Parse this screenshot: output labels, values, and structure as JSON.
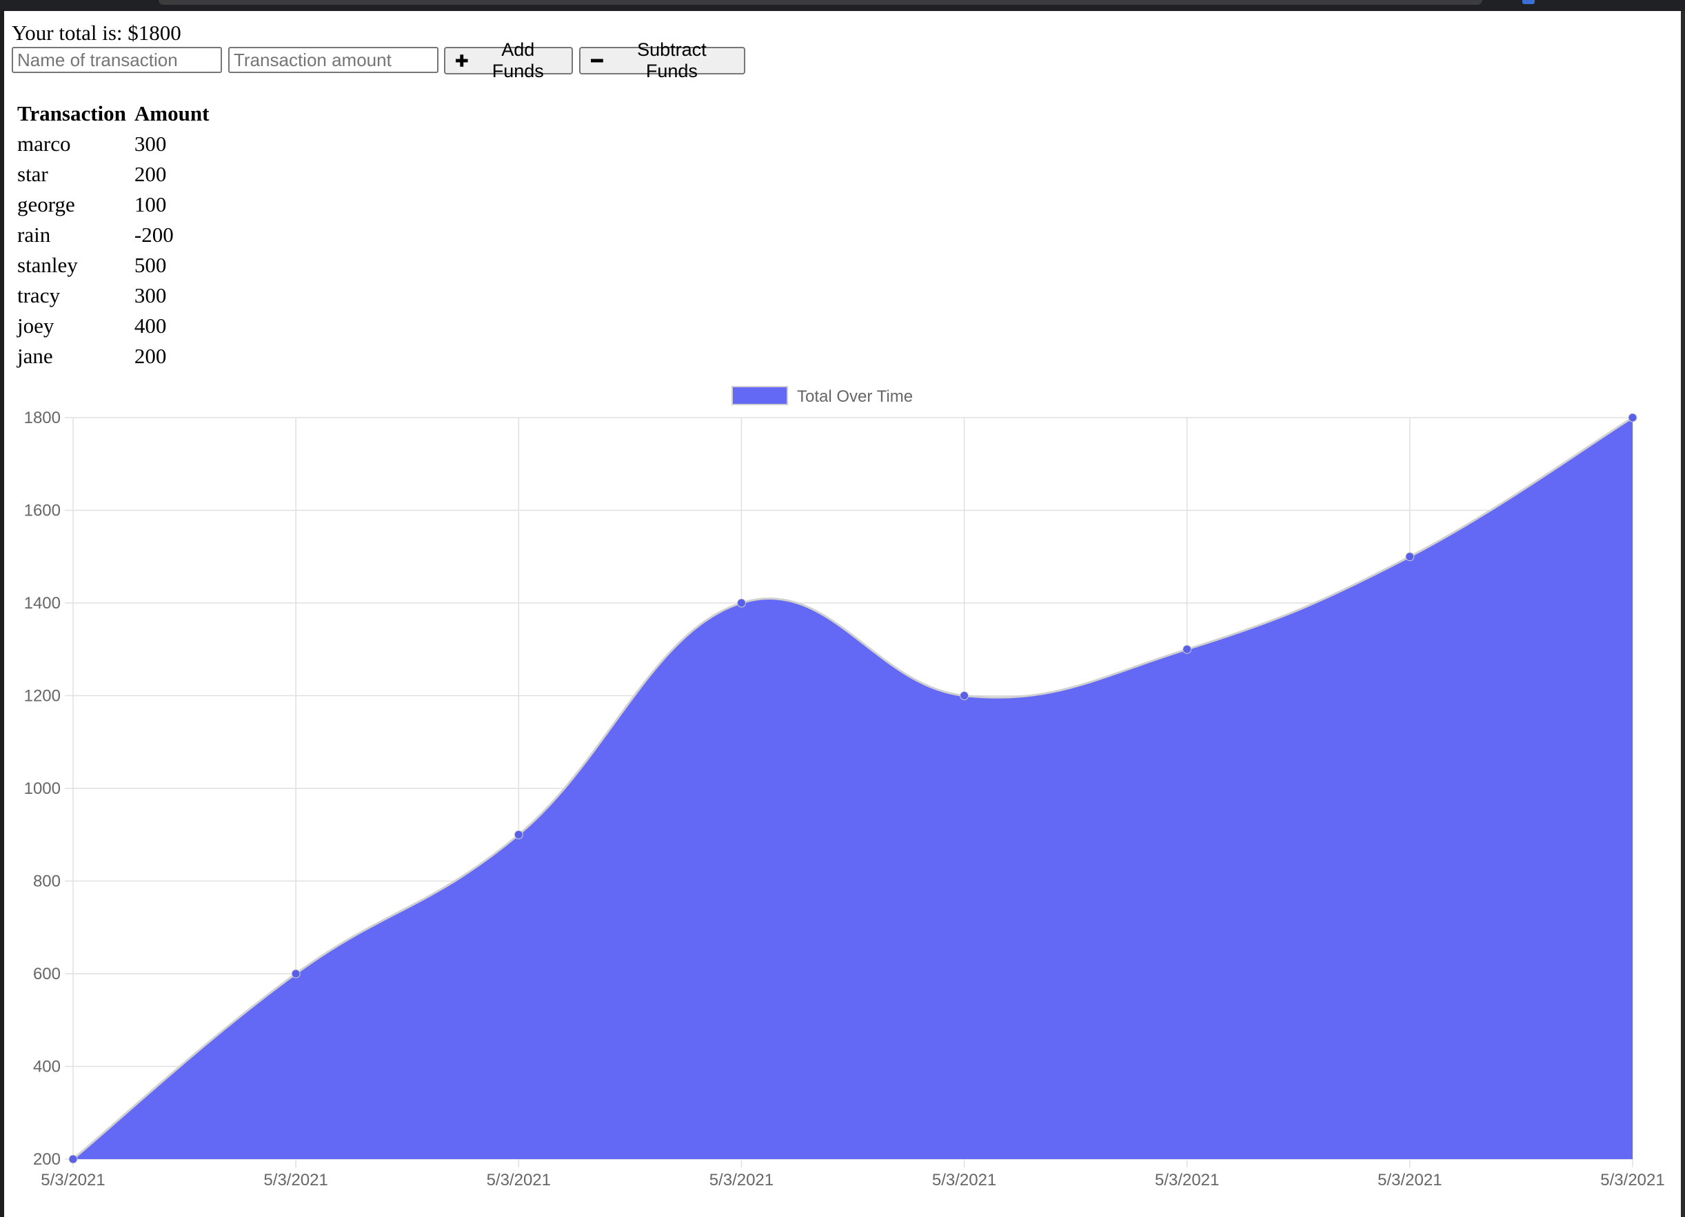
{
  "total": {
    "label": "Your total is: $1800"
  },
  "form": {
    "name_placeholder": "Name of transaction",
    "amount_placeholder": "Transaction amount",
    "add_label": "Add Funds",
    "subtract_label": "Subtract Funds"
  },
  "table": {
    "headers": [
      "Transaction",
      "Amount"
    ],
    "rows": [
      [
        "marco",
        "300"
      ],
      [
        "star",
        "200"
      ],
      [
        "george",
        "100"
      ],
      [
        "rain",
        "-200"
      ],
      [
        "stanley",
        "500"
      ],
      [
        "tracy",
        "300"
      ],
      [
        "joey",
        "400"
      ],
      [
        "jane",
        "200"
      ]
    ]
  },
  "colors": {
    "fill": "#6469f5",
    "point": "#5a5fe8",
    "line": "#d0d0d0",
    "grid": "#e0e0e0",
    "tick": "#666666"
  },
  "chart_data": {
    "type": "area",
    "x": [
      "5/3/2021",
      "5/3/2021",
      "5/3/2021",
      "5/3/2021",
      "5/3/2021",
      "5/3/2021",
      "5/3/2021",
      "5/3/2021"
    ],
    "series": [
      {
        "name": "Total Over Time",
        "values": [
          200,
          600,
          900,
          1400,
          1200,
          1300,
          1500,
          1800
        ]
      }
    ],
    "ylim": [
      200,
      1800
    ],
    "yticks": [
      200,
      400,
      600,
      800,
      1000,
      1200,
      1400,
      1600,
      1800
    ],
    "grid": true,
    "legend": "top-center",
    "curve": "smooth"
  }
}
